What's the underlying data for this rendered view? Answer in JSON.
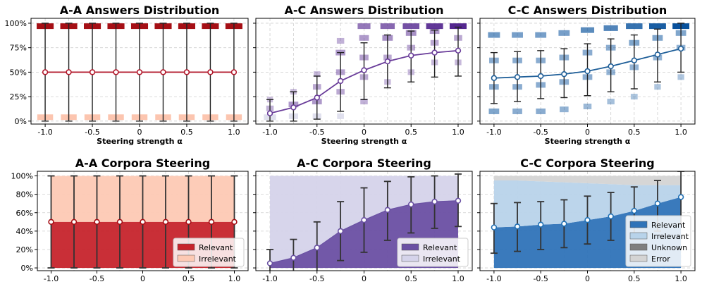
{
  "chart_data": [
    {
      "type": "line",
      "title": "A-A Answers Distribution",
      "xlabel": "Steering strength α",
      "x": [
        -1.0,
        -0.75,
        -0.5,
        -0.25,
        0,
        0.25,
        0.5,
        0.75,
        1.0
      ],
      "x_ticks": [
        "-1.0",
        "-0.5",
        "0",
        "0.5",
        "1.0"
      ],
      "y_ticks": [
        "0%",
        "25%",
        "50%",
        "75%",
        "100%"
      ],
      "ylim": [
        -0.03,
        1.05
      ],
      "grid": true,
      "colors": {
        "line": "#b2182b",
        "high": "#a50f15",
        "low": "#fcbba1"
      },
      "series": [
        {
          "values": [
            0.5,
            0.5,
            0.5,
            0.5,
            0.5,
            0.5,
            0.5,
            0.5,
            0.5
          ]
        }
      ],
      "error_bars": {
        "low": [
          0,
          0,
          0,
          0,
          0,
          0,
          0,
          0,
          0
        ],
        "high": [
          1,
          1,
          1,
          1,
          1,
          1,
          1,
          1,
          1
        ]
      },
      "distribution": [
        [
          [
            0.04,
            0.9
          ],
          [
            0.97,
            1.0
          ]
        ],
        [
          [
            0.04,
            0.9
          ],
          [
            0.97,
            1.0
          ]
        ],
        [
          [
            0.04,
            0.9
          ],
          [
            0.97,
            1.0
          ]
        ],
        [
          [
            0.04,
            0.9
          ],
          [
            0.97,
            1.0
          ]
        ],
        [
          [
            0.04,
            0.9
          ],
          [
            0.97,
            1.0
          ]
        ],
        [
          [
            0.04,
            0.9
          ],
          [
            0.97,
            1.0
          ]
        ],
        [
          [
            0.04,
            0.9
          ],
          [
            0.97,
            1.0
          ]
        ],
        [
          [
            0.04,
            0.9
          ],
          [
            0.97,
            1.0
          ]
        ],
        [
          [
            0.04,
            0.9
          ],
          [
            0.97,
            1.0
          ]
        ]
      ]
    },
    {
      "type": "line",
      "title": "A-C Answers Distribution",
      "xlabel": "Steering strength α",
      "x": [
        -1.0,
        -0.75,
        -0.5,
        -0.25,
        0,
        0.25,
        0.5,
        0.75,
        1.0
      ],
      "x_ticks": [
        "-1.0",
        "-0.5",
        "0",
        "0.5",
        "1.0"
      ],
      "ylim": [
        -0.03,
        1.05
      ],
      "grid": true,
      "colors": {
        "line": "#6a3d9a",
        "high": "#54278f",
        "low": "#dadaeb"
      },
      "series": [
        {
          "values": [
            0.08,
            0.14,
            0.24,
            0.41,
            0.52,
            0.61,
            0.67,
            0.7,
            0.72
          ]
        }
      ],
      "error_bars": {
        "low": [
          0.0,
          0.0,
          0.02,
          0.1,
          0.22,
          0.34,
          0.4,
          0.45,
          0.46
        ],
        "high": [
          0.22,
          0.3,
          0.46,
          0.7,
          0.8,
          0.88,
          0.92,
          0.93,
          0.96
        ]
      },
      "distribution": [
        [
          [
            0.04,
            0.6
          ],
          [
            0.13,
            0.15
          ],
          [
            0.22,
            0.05
          ]
        ],
        [
          [
            0.05,
            0.35
          ],
          [
            0.17,
            0.3
          ],
          [
            0.3,
            0.08
          ]
        ],
        [
          [
            0.05,
            0.3
          ],
          [
            0.2,
            0.3
          ],
          [
            0.35,
            0.2
          ],
          [
            0.48,
            0.1
          ]
        ],
        [
          [
            0.05,
            0.15
          ],
          [
            0.3,
            0.2
          ],
          [
            0.5,
            0.25
          ],
          [
            0.7,
            0.3
          ],
          [
            0.82,
            0.15
          ]
        ],
        [
          [
            0.2,
            0.15
          ],
          [
            0.45,
            0.2
          ],
          [
            0.65,
            0.25
          ],
          [
            0.85,
            0.3
          ],
          [
            0.97,
            0.5
          ]
        ],
        [
          [
            0.4,
            0.1
          ],
          [
            0.65,
            0.2
          ],
          [
            0.85,
            0.35
          ],
          [
            0.97,
            0.6
          ]
        ],
        [
          [
            0.5,
            0.1
          ],
          [
            0.75,
            0.2
          ],
          [
            0.9,
            0.35
          ],
          [
            0.97,
            0.75
          ]
        ],
        [
          [
            0.6,
            0.1
          ],
          [
            0.8,
            0.2
          ],
          [
            0.92,
            0.3
          ],
          [
            0.97,
            0.9
          ]
        ],
        [
          [
            0.6,
            0.1
          ],
          [
            0.85,
            0.2
          ],
          [
            0.97,
            1.0
          ]
        ]
      ]
    },
    {
      "type": "line",
      "title": "C-C Answers Distribution",
      "xlabel": "Steering strength α",
      "x": [
        -1.0,
        -0.75,
        -0.5,
        -0.25,
        0,
        0.25,
        0.5,
        0.75,
        1.0
      ],
      "x_ticks": [
        "-1.0",
        "-0.5",
        "0",
        "0.5",
        "1.0"
      ],
      "ylim": [
        -0.03,
        1.05
      ],
      "grid": true,
      "colors": {
        "line": "#1f5f99",
        "high": "#08519c",
        "low": "#c6dbef"
      },
      "series": [
        {
          "values": [
            0.44,
            0.45,
            0.46,
            0.48,
            0.51,
            0.56,
            0.62,
            0.68,
            0.74
          ]
        }
      ],
      "error_bars": {
        "low": [
          0.18,
          0.2,
          0.23,
          0.24,
          0.26,
          0.3,
          0.33,
          0.4,
          0.5
        ],
        "high": [
          0.7,
          0.71,
          0.72,
          0.74,
          0.79,
          0.84,
          0.88,
          0.94,
          1.0
        ]
      },
      "distribution": [
        [
          [
            0.1,
            0.35
          ],
          [
            0.35,
            0.3
          ],
          [
            0.62,
            0.3
          ],
          [
            0.88,
            0.45
          ]
        ],
        [
          [
            0.1,
            0.3
          ],
          [
            0.35,
            0.3
          ],
          [
            0.62,
            0.3
          ],
          [
            0.88,
            0.4
          ]
        ],
        [
          [
            0.1,
            0.3
          ],
          [
            0.37,
            0.3
          ],
          [
            0.62,
            0.3
          ],
          [
            0.88,
            0.4
          ]
        ],
        [
          [
            0.12,
            0.25
          ],
          [
            0.4,
            0.3
          ],
          [
            0.65,
            0.3
          ],
          [
            0.9,
            0.4
          ]
        ],
        [
          [
            0.15,
            0.2
          ],
          [
            0.45,
            0.3
          ],
          [
            0.7,
            0.3
          ],
          [
            0.93,
            0.55
          ]
        ],
        [
          [
            0.2,
            0.15
          ],
          [
            0.5,
            0.25
          ],
          [
            0.75,
            0.3
          ],
          [
            0.95,
            0.6
          ]
        ],
        [
          [
            0.25,
            0.12
          ],
          [
            0.55,
            0.25
          ],
          [
            0.8,
            0.35
          ],
          [
            0.97,
            0.75
          ]
        ],
        [
          [
            0.35,
            0.1
          ],
          [
            0.65,
            0.25
          ],
          [
            0.85,
            0.35
          ],
          [
            0.97,
            0.9
          ]
        ],
        [
          [
            0.45,
            0.1
          ],
          [
            0.75,
            0.25
          ],
          [
            0.9,
            0.35
          ],
          [
            0.97,
            1.0
          ]
        ]
      ]
    },
    {
      "type": "area",
      "title": "A-A Corpora Steering",
      "x": [
        -1.0,
        -0.75,
        -0.5,
        -0.25,
        0,
        0.25,
        0.5,
        0.75,
        1.0
      ],
      "x_ticks": [
        "-1.0",
        "-0.5",
        "0",
        "0.5",
        "1.0"
      ],
      "y_ticks": [
        "0%",
        "20%",
        "40%",
        "60%",
        "80%",
        "100%"
      ],
      "ylim": [
        -0.03,
        1.05
      ],
      "grid": true,
      "legend_placement": "lower-right",
      "colors": {
        "line": "#a50f15"
      },
      "series": [
        {
          "name": "Relevant",
          "color": "#c6242c",
          "values": [
            0.5,
            0.5,
            0.5,
            0.5,
            0.5,
            0.5,
            0.5,
            0.5,
            0.5
          ]
        },
        {
          "name": "Irrelevant",
          "color": "#fdc9b4",
          "values": [
            0.5,
            0.5,
            0.5,
            0.5,
            0.5,
            0.5,
            0.5,
            0.5,
            0.5
          ]
        }
      ],
      "error_bars": {
        "low": [
          0,
          0,
          0,
          0,
          0,
          0,
          0,
          0,
          0
        ],
        "high": [
          1,
          1,
          1,
          1,
          1,
          1,
          1,
          1,
          1
        ]
      }
    },
    {
      "type": "area",
      "title": "A-C Corpora Steering",
      "x": [
        -1.0,
        -0.75,
        -0.5,
        -0.25,
        0,
        0.25,
        0.5,
        0.75,
        1.0
      ],
      "x_ticks": [
        "-1.0",
        "-0.5",
        "0",
        "0.5",
        "1.0"
      ],
      "ylim": [
        -0.03,
        1.05
      ],
      "grid": true,
      "legend_placement": "lower-right",
      "colors": {
        "line": "#6a51a3"
      },
      "series": [
        {
          "name": "Relevant",
          "color": "#6a4fa3",
          "values": [
            0.05,
            0.11,
            0.22,
            0.4,
            0.52,
            0.63,
            0.69,
            0.72,
            0.73
          ]
        },
        {
          "name": "Irrelevant",
          "color": "#d5d3ea",
          "values": [
            0.95,
            0.89,
            0.78,
            0.6,
            0.48,
            0.37,
            0.31,
            0.28,
            0.27
          ]
        }
      ],
      "error_bars": {
        "low": [
          -0.08,
          -0.07,
          -0.05,
          0.08,
          0.17,
          0.3,
          0.38,
          0.43,
          0.45
        ],
        "high": [
          0.2,
          0.31,
          0.5,
          0.72,
          0.87,
          0.94,
          0.99,
          1.0,
          1.02
        ]
      }
    },
    {
      "type": "area",
      "title": "C-C Corpora Steering",
      "x": [
        -1.0,
        -0.75,
        -0.5,
        -0.25,
        0,
        0.25,
        0.5,
        0.75,
        1.0
      ],
      "x_ticks": [
        "-1.0",
        "-0.5",
        "0",
        "0.5",
        "1.0"
      ],
      "ylim": [
        -0.03,
        1.05
      ],
      "grid": true,
      "legend_placement": "lower-right",
      "colors": {
        "line": "#2171b5"
      },
      "series": [
        {
          "name": "Relevant",
          "color": "#2f73b8",
          "values": [
            0.44,
            0.45,
            0.47,
            0.48,
            0.52,
            0.56,
            0.62,
            0.7,
            0.77
          ]
        },
        {
          "name": "Irrelevant",
          "color": "#b8d3ea",
          "values": [
            0.51,
            0.5,
            0.47,
            0.45,
            0.4,
            0.35,
            0.28,
            0.2,
            0.13
          ]
        },
        {
          "name": "Unknown",
          "color": "#7f7f7f",
          "values": [
            0,
            0,
            0,
            0,
            0,
            0,
            0,
            0,
            0
          ]
        },
        {
          "name": "Error",
          "color": "#d4d4d4",
          "values": [
            0.05,
            0.05,
            0.06,
            0.07,
            0.08,
            0.09,
            0.1,
            0.1,
            0.1
          ]
        }
      ],
      "error_bars": {
        "low": [
          0.16,
          0.18,
          0.2,
          0.22,
          0.26,
          0.3,
          0.34,
          0.4,
          0.48
        ],
        "high": [
          0.7,
          0.71,
          0.72,
          0.74,
          0.78,
          0.82,
          0.88,
          0.95,
          1.05
        ]
      }
    }
  ]
}
